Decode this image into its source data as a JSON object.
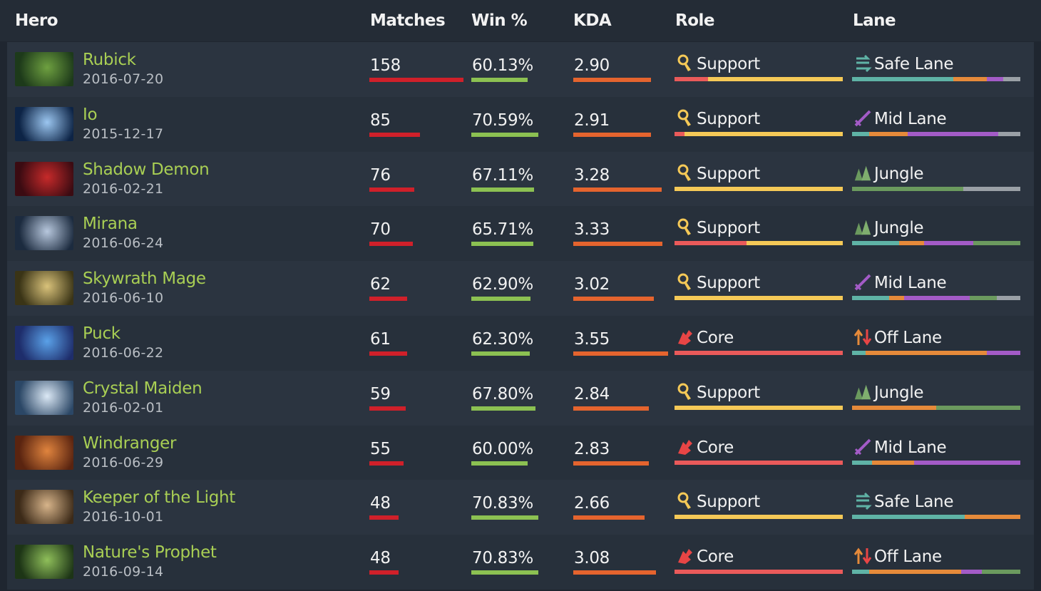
{
  "header": {
    "hero": "Hero",
    "matches": "Matches",
    "win": "Win %",
    "kda": "KDA",
    "role": "Role",
    "lane": "Lane"
  },
  "colors": {
    "matches_bar": "#d0202a",
    "win_bar": "#8cc152",
    "kda_bar": "#e5642e",
    "support": "#f5c957",
    "core": "#ea5a5a",
    "lane_teal": "#5fb3a6",
    "lane_orange": "#e68a3a",
    "lane_purple": "#a35bc7",
    "lane_gray": "#9aa0a6",
    "lane_green": "#6b9a5e",
    "hero_name": "#a9cf54"
  },
  "rows": [
    {
      "name": "Rubick",
      "date": "2016-07-20",
      "matches": "158",
      "matches_frac": 1.0,
      "win": "60.13%",
      "win_frac": 0.6,
      "kda": "2.90",
      "kda_frac": 0.82,
      "role": "Support",
      "role_icon": "support-icon",
      "role_mix": [
        0.2,
        0.8
      ],
      "lane": "Safe Lane",
      "lane_icon": "safe-lane-icon",
      "lane_mix": [
        0.6,
        0.2,
        0.1,
        0.1
      ],
      "lane_colors": [
        "lane_teal",
        "lane_orange",
        "lane_purple",
        "lane_gray"
      ],
      "portrait": [
        "#1d3a1a",
        "#6ea040"
      ]
    },
    {
      "name": "Io",
      "date": "2015-12-17",
      "matches": "85",
      "matches_frac": 0.54,
      "win": "70.59%",
      "win_frac": 0.71,
      "kda": "2.91",
      "kda_frac": 0.82,
      "role": "Support",
      "role_icon": "support-icon",
      "role_mix": [
        0.06,
        0.94
      ],
      "lane": "Mid Lane",
      "lane_icon": "mid-lane-icon",
      "lane_mix": [
        0.1,
        0.23,
        0.54,
        0.13
      ],
      "lane_colors": [
        "lane_teal",
        "lane_orange",
        "lane_purple",
        "lane_gray"
      ],
      "portrait": [
        "#0d2446",
        "#9bc6f0"
      ]
    },
    {
      "name": "Shadow Demon",
      "date": "2016-02-21",
      "matches": "76",
      "matches_frac": 0.48,
      "win": "67.11%",
      "win_frac": 0.67,
      "kda": "3.28",
      "kda_frac": 0.93,
      "role": "Support",
      "role_icon": "support-icon",
      "role_mix": [
        0.0,
        1.0
      ],
      "lane": "Jungle",
      "lane_icon": "jungle-icon",
      "lane_mix": [
        0.0,
        0.0,
        0.0,
        0.66,
        0.34
      ],
      "lane_colors": [
        "lane_teal",
        "lane_orange",
        "lane_purple",
        "lane_green",
        "lane_gray"
      ],
      "portrait": [
        "#3b0b12",
        "#c62a2a"
      ]
    },
    {
      "name": "Mirana",
      "date": "2016-06-24",
      "matches": "70",
      "matches_frac": 0.46,
      "win": "65.71%",
      "win_frac": 0.66,
      "kda": "3.33",
      "kda_frac": 0.94,
      "role": "Support",
      "role_icon": "support-icon",
      "role_mix": [
        0.43,
        0.57
      ],
      "lane": "Jungle",
      "lane_icon": "jungle-icon",
      "lane_mix": [
        0.28,
        0.15,
        0.29,
        0.28
      ],
      "lane_colors": [
        "lane_teal",
        "lane_orange",
        "lane_purple",
        "lane_green"
      ],
      "portrait": [
        "#1c2b3f",
        "#b7c7dd"
      ]
    },
    {
      "name": "Skywrath Mage",
      "date": "2016-06-10",
      "matches": "62",
      "matches_frac": 0.4,
      "win": "62.90%",
      "win_frac": 0.63,
      "kda": "3.02",
      "kda_frac": 0.85,
      "role": "Support",
      "role_icon": "support-icon",
      "role_mix": [
        0.0,
        1.0
      ],
      "lane": "Mid Lane",
      "lane_icon": "mid-lane-icon",
      "lane_mix": [
        0.22,
        0.09,
        0.39,
        0.16,
        0.14
      ],
      "lane_colors": [
        "lane_teal",
        "lane_orange",
        "lane_purple",
        "lane_green",
        "lane_gray"
      ],
      "portrait": [
        "#3a3416",
        "#d9c27a"
      ]
    },
    {
      "name": "Puck",
      "date": "2016-06-22",
      "matches": "61",
      "matches_frac": 0.4,
      "win": "62.30%",
      "win_frac": 0.62,
      "kda": "3.55",
      "kda_frac": 1.0,
      "role": "Core",
      "role_icon": "core-icon",
      "role_mix": [
        1.0,
        0.0
      ],
      "lane": "Off Lane",
      "lane_icon": "off-lane-icon",
      "lane_mix": [
        0.08,
        0.72,
        0.2
      ],
      "lane_colors": [
        "lane_teal",
        "lane_orange",
        "lane_purple"
      ],
      "portrait": [
        "#1e2d6b",
        "#5aa1e8"
      ]
    },
    {
      "name": "Crystal Maiden",
      "date": "2016-02-01",
      "matches": "59",
      "matches_frac": 0.39,
      "win": "67.80%",
      "win_frac": 0.68,
      "kda": "2.84",
      "kda_frac": 0.8,
      "role": "Support",
      "role_icon": "support-icon",
      "role_mix": [
        0.0,
        1.0
      ],
      "lane": "Jungle",
      "lane_icon": "jungle-icon",
      "lane_mix": [
        0.0,
        0.5,
        0.0,
        0.5
      ],
      "lane_colors": [
        "lane_teal",
        "lane_orange",
        "lane_purple",
        "lane_green"
      ],
      "portrait": [
        "#2b4766",
        "#dbe8f5"
      ]
    },
    {
      "name": "Windranger",
      "date": "2016-06-29",
      "matches": "55",
      "matches_frac": 0.36,
      "win": "60.00%",
      "win_frac": 0.6,
      "kda": "2.83",
      "kda_frac": 0.8,
      "role": "Core",
      "role_icon": "core-icon",
      "role_mix": [
        1.0,
        0.0
      ],
      "lane": "Mid Lane",
      "lane_icon": "mid-lane-icon",
      "lane_mix": [
        0.12,
        0.25,
        0.63
      ],
      "lane_colors": [
        "lane_teal",
        "lane_orange",
        "lane_purple"
      ],
      "portrait": [
        "#5a2410",
        "#e0843e"
      ]
    },
    {
      "name": "Keeper of the Light",
      "date": "2016-10-01",
      "matches": "48",
      "matches_frac": 0.31,
      "win": "70.83%",
      "win_frac": 0.71,
      "kda": "2.66",
      "kda_frac": 0.75,
      "role": "Support",
      "role_icon": "support-icon",
      "role_mix": [
        0.0,
        1.0
      ],
      "lane": "Safe Lane",
      "lane_icon": "safe-lane-icon",
      "lane_mix": [
        0.67,
        0.33
      ],
      "lane_colors": [
        "lane_teal",
        "lane_orange"
      ],
      "portrait": [
        "#3c2a18",
        "#d7b48a"
      ]
    },
    {
      "name": "Nature's Prophet",
      "date": "2016-09-14",
      "matches": "48",
      "matches_frac": 0.31,
      "win": "70.83%",
      "win_frac": 0.71,
      "kda": "3.08",
      "kda_frac": 0.87,
      "role": "Core",
      "role_icon": "core-icon",
      "role_mix": [
        1.0,
        0.0
      ],
      "lane": "Off Lane",
      "lane_icon": "off-lane-icon",
      "lane_mix": [
        0.1,
        0.55,
        0.12,
        0.23
      ],
      "lane_colors": [
        "lane_teal",
        "lane_orange",
        "lane_purple",
        "lane_green"
      ],
      "portrait": [
        "#1d3516",
        "#8fbf5a"
      ]
    }
  ]
}
